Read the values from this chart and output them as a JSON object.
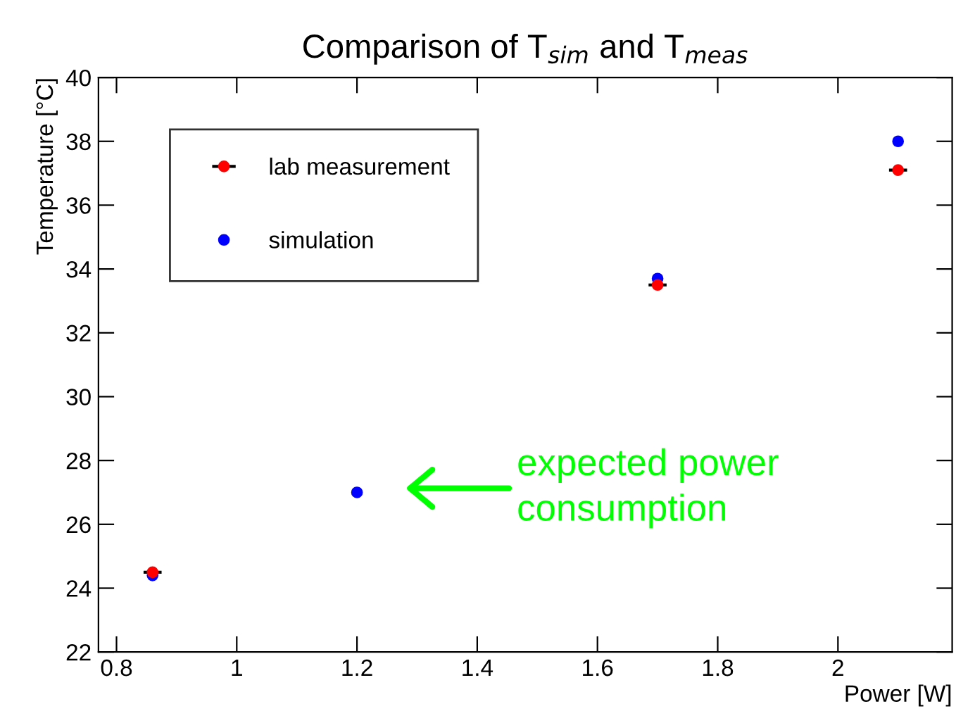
{
  "chart_data": {
    "type": "scatter",
    "title": "Comparison of T$_{sim}$ and T$_{meas}$",
    "xlabel": "Power [W]",
    "ylabel": "Temperature [°C]",
    "x": [
      0.86,
      1.2,
      1.7,
      2.1
    ],
    "series": [
      {
        "name": "lab measurement",
        "color": "#ff0000",
        "values": [
          24.5,
          null,
          33.5,
          37.1
        ],
        "xerrors": [
          0.015,
          null,
          0.015,
          0.015
        ]
      },
      {
        "name": "simulation",
        "color": "#0000ff",
        "values": [
          24.4,
          27.0,
          33.7,
          38.0
        ]
      }
    ],
    "annotations": [
      "expected power\nconsumption"
    ],
    "xlim": [
      0.77,
      2.19
    ],
    "xticks": [
      0.8,
      1,
      1.2,
      1.4,
      1.6,
      1.8,
      2
    ],
    "ylim": [
      22,
      40
    ],
    "yticks": [
      22,
      24,
      26,
      28,
      30,
      32,
      34,
      36,
      38,
      40
    ],
    "grid": false,
    "legend": "top left",
    "marker": "circle"
  }
}
